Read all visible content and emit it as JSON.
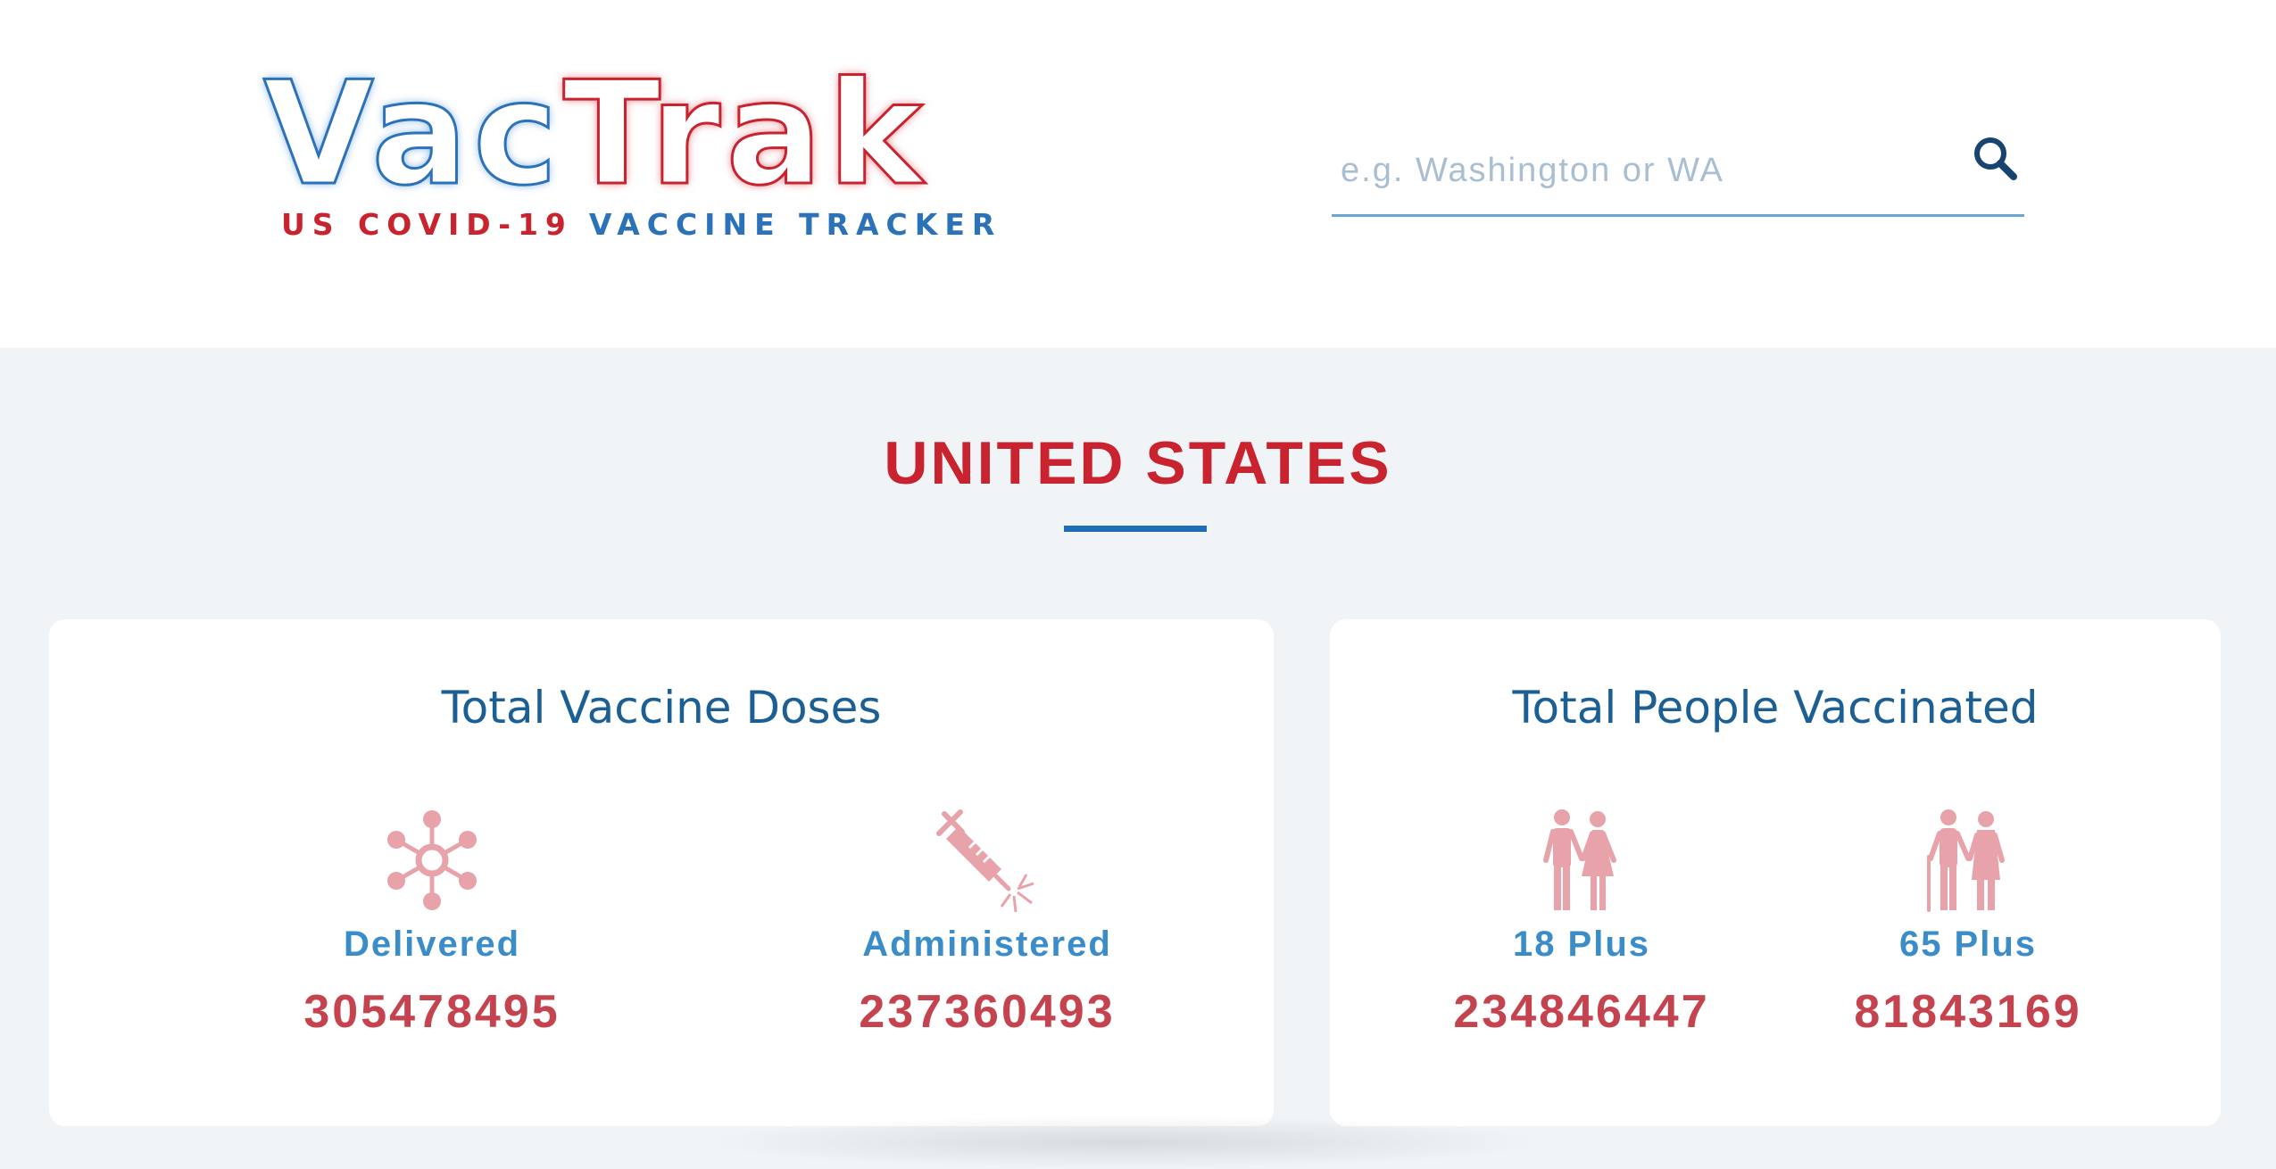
{
  "header": {
    "logo": {
      "word_part1": "Vac",
      "word_part2": "Trak",
      "subtitle_part1": "US COVID-19",
      "subtitle_part2": "VACCINE TRACKER"
    },
    "search": {
      "placeholder": "e.g. Washington or WA",
      "value": "",
      "button_icon": "search-icon"
    }
  },
  "region": {
    "title": "UNITED STATES"
  },
  "cards": {
    "doses": {
      "title": "Total Vaccine Doses",
      "stats": [
        {
          "icon": "vaccine-molecule-icon",
          "label": "Delivered",
          "value": "305478495"
        },
        {
          "icon": "syringe-icon",
          "label": "Administered",
          "value": "237360493"
        }
      ]
    },
    "people": {
      "title": "Total People Vaccinated",
      "stats": [
        {
          "icon": "adults-icon",
          "label": "18 Plus",
          "value": "234846447"
        },
        {
          "icon": "seniors-icon",
          "label": "65 Plus",
          "value": "81843169"
        }
      ]
    }
  },
  "colors": {
    "brand_red": "#c8232f",
    "brand_blue": "#2b72b9",
    "icon_pink": "#e8a3aa",
    "label_blue": "#3a8dc8",
    "value_red": "#c5434f",
    "background": "#f0f4f7"
  }
}
